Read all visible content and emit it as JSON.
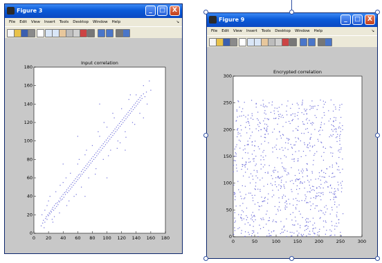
{
  "windows": [
    {
      "id": "w1",
      "title": "Figure 3",
      "menu": [
        "File",
        "Edit",
        "View",
        "Insert",
        "Tools",
        "Desktop",
        "Window",
        "Help"
      ],
      "title_buttons": {
        "minimize": "_",
        "maximize": "□",
        "close": "X"
      },
      "toolbar_icons": [
        "new-file-icon",
        "open-folder-icon",
        "save-icon",
        "print-icon",
        "arrow-pointer-icon",
        "zoom-in-icon",
        "zoom-out-icon",
        "pan-hand-icon",
        "rotate-3d-icon",
        "data-cursor-icon",
        "brush-icon",
        "link-plot-icon",
        "colorbar-icon",
        "legend-icon",
        "hide-plot-tools-icon",
        "show-plot-tools-icon"
      ]
    },
    {
      "id": "w2",
      "title": "Figure 9",
      "menu": [
        "File",
        "Edit",
        "View",
        "Insert",
        "Tools",
        "Desktop",
        "Window",
        "Help"
      ],
      "title_buttons": {
        "minimize": "_",
        "maximize": "□",
        "close": "X"
      },
      "toolbar_icons": [
        "new-file-icon",
        "open-folder-icon",
        "save-icon",
        "print-icon",
        "arrow-pointer-icon",
        "zoom-in-icon",
        "zoom-out-icon",
        "pan-hand-icon",
        "rotate-3d-icon",
        "data-cursor-icon",
        "brush-icon",
        "link-plot-icon",
        "colorbar-icon",
        "legend-icon",
        "hide-plot-tools-icon",
        "show-plot-tools-icon"
      ]
    }
  ],
  "colors": {
    "marker": "#6a6ad8",
    "axes_bg": "#ffffff",
    "figure_bg": "#c8c8c8",
    "titlebar": "#0a5ad8"
  },
  "chart_data": [
    {
      "type": "scatter",
      "title": "Input correlation",
      "xlabel": "",
      "ylabel": "",
      "xlim": [
        0,
        180
      ],
      "ylim": [
        0,
        180
      ],
      "xticks": [
        0,
        20,
        40,
        60,
        80,
        100,
        120,
        140,
        160,
        180
      ],
      "yticks": [
        0,
        20,
        40,
        60,
        80,
        100,
        120,
        140,
        160,
        180
      ],
      "grid": false,
      "points": [
        [
          10,
          8
        ],
        [
          12,
          11
        ],
        [
          13,
          14
        ],
        [
          15,
          12
        ],
        [
          16,
          16
        ],
        [
          17,
          18
        ],
        [
          18,
          15
        ],
        [
          19,
          20
        ],
        [
          20,
          19
        ],
        [
          21,
          22
        ],
        [
          22,
          21
        ],
        [
          23,
          24
        ],
        [
          24,
          23
        ],
        [
          25,
          26
        ],
        [
          26,
          28
        ],
        [
          27,
          25
        ],
        [
          28,
          30
        ],
        [
          29,
          27
        ],
        [
          30,
          32
        ],
        [
          31,
          29
        ],
        [
          32,
          33
        ],
        [
          33,
          31
        ],
        [
          34,
          35
        ],
        [
          35,
          34
        ],
        [
          36,
          38
        ],
        [
          37,
          36
        ],
        [
          38,
          40
        ],
        [
          39,
          37
        ],
        [
          40,
          42
        ],
        [
          41,
          39
        ],
        [
          42,
          44
        ],
        [
          43,
          42
        ],
        [
          44,
          45
        ],
        [
          45,
          47
        ],
        [
          46,
          44
        ],
        [
          47,
          49
        ],
        [
          48,
          46
        ],
        [
          49,
          51
        ],
        [
          50,
          48
        ],
        [
          51,
          53
        ],
        [
          52,
          50
        ],
        [
          53,
          55
        ],
        [
          54,
          52
        ],
        [
          55,
          57
        ],
        [
          56,
          54
        ],
        [
          57,
          59
        ],
        [
          58,
          56
        ],
        [
          59,
          61
        ],
        [
          60,
          58
        ],
        [
          61,
          63
        ],
        [
          62,
          60
        ],
        [
          63,
          64
        ],
        [
          64,
          62
        ],
        [
          65,
          67
        ],
        [
          66,
          64
        ],
        [
          67,
          69
        ],
        [
          68,
          66
        ],
        [
          69,
          71
        ],
        [
          70,
          68
        ],
        [
          71,
          73
        ],
        [
          72,
          70
        ],
        [
          73,
          75
        ],
        [
          74,
          72
        ],
        [
          75,
          77
        ],
        [
          76,
          74
        ],
        [
          77,
          79
        ],
        [
          78,
          76
        ],
        [
          79,
          81
        ],
        [
          80,
          78
        ],
        [
          81,
          83
        ],
        [
          82,
          80
        ],
        [
          83,
          85
        ],
        [
          84,
          82
        ],
        [
          85,
          87
        ],
        [
          86,
          84
        ],
        [
          87,
          89
        ],
        [
          88,
          86
        ],
        [
          89,
          91
        ],
        [
          90,
          88
        ],
        [
          91,
          93
        ],
        [
          92,
          90
        ],
        [
          93,
          95
        ],
        [
          94,
          92
        ],
        [
          95,
          97
        ],
        [
          96,
          94
        ],
        [
          97,
          99
        ],
        [
          98,
          96
        ],
        [
          99,
          101
        ],
        [
          100,
          98
        ],
        [
          101,
          103
        ],
        [
          102,
          100
        ],
        [
          103,
          105
        ],
        [
          104,
          102
        ],
        [
          105,
          107
        ],
        [
          106,
          104
        ],
        [
          107,
          109
        ],
        [
          108,
          106
        ],
        [
          109,
          111
        ],
        [
          110,
          108
        ],
        [
          111,
          113
        ],
        [
          112,
          110
        ],
        [
          113,
          115
        ],
        [
          114,
          112
        ],
        [
          115,
          117
        ],
        [
          116,
          114
        ],
        [
          117,
          119
        ],
        [
          118,
          116
        ],
        [
          119,
          121
        ],
        [
          120,
          118
        ],
        [
          121,
          123
        ],
        [
          122,
          120
        ],
        [
          123,
          125
        ],
        [
          124,
          122
        ],
        [
          125,
          127
        ],
        [
          126,
          124
        ],
        [
          127,
          129
        ],
        [
          128,
          126
        ],
        [
          129,
          131
        ],
        [
          130,
          128
        ],
        [
          131,
          133
        ],
        [
          132,
          130
        ],
        [
          133,
          135
        ],
        [
          134,
          132
        ],
        [
          135,
          137
        ],
        [
          136,
          134
        ],
        [
          137,
          139
        ],
        [
          138,
          136
        ],
        [
          139,
          141
        ],
        [
          140,
          138
        ],
        [
          141,
          143
        ],
        [
          142,
          140
        ],
        [
          143,
          145
        ],
        [
          144,
          142
        ],
        [
          145,
          147
        ],
        [
          146,
          144
        ],
        [
          147,
          149
        ],
        [
          148,
          146
        ],
        [
          150,
          151
        ],
        [
          152,
          148
        ],
        [
          154,
          153
        ],
        [
          15,
          25
        ],
        [
          20,
          35
        ],
        [
          25,
          15
        ],
        [
          30,
          45
        ],
        [
          35,
          22
        ],
        [
          40,
          55
        ],
        [
          45,
          30
        ],
        [
          50,
          65
        ],
        [
          55,
          40
        ],
        [
          60,
          75
        ],
        [
          65,
          50
        ],
        [
          70,
          85
        ],
        [
          75,
          60
        ],
        [
          80,
          95
        ],
        [
          85,
          70
        ],
        [
          90,
          105
        ],
        [
          95,
          80
        ],
        [
          100,
          115
        ],
        [
          105,
          90
        ],
        [
          110,
          125
        ],
        [
          115,
          100
        ],
        [
          120,
          135
        ],
        [
          125,
          110
        ],
        [
          130,
          145
        ],
        [
          135,
          120
        ],
        [
          140,
          150
        ],
        [
          145,
          130
        ],
        [
          118,
          98
        ],
        [
          88,
          110
        ],
        [
          62,
          80
        ],
        [
          48,
          35
        ],
        [
          36,
          52
        ],
        [
          28,
          18
        ],
        [
          22,
          40
        ],
        [
          14,
          6
        ],
        [
          11,
          20
        ],
        [
          18,
          30
        ],
        [
          26,
          12
        ],
        [
          44,
          60
        ],
        [
          58,
          42
        ],
        [
          72,
          90
        ],
        [
          84,
          64
        ],
        [
          96,
          120
        ],
        [
          102,
          84
        ],
        [
          108,
          130
        ],
        [
          114,
          92
        ],
        [
          126,
          104
        ],
        [
          132,
          150
        ],
        [
          138,
          118
        ],
        [
          150,
          160
        ],
        [
          160,
          155
        ],
        [
          155,
          140
        ],
        [
          158,
          165
        ],
        [
          70,
          40
        ],
        [
          40,
          75
        ],
        [
          100,
          60
        ],
        [
          60,
          105
        ],
        [
          125,
          90
        ],
        [
          90,
          140
        ],
        [
          150,
          125
        ]
      ]
    },
    {
      "type": "scatter",
      "title": "Encrypted correlation",
      "xlabel": "",
      "ylabel": "",
      "xlim": [
        0,
        300
      ],
      "ylim": [
        0,
        300
      ],
      "xticks": [
        0,
        50,
        100,
        150,
        200,
        250,
        300
      ],
      "yticks": [
        0,
        50,
        100,
        150,
        200,
        250,
        300
      ],
      "grid": false,
      "points_generated": {
        "count": 900,
        "x_range": [
          0,
          256
        ],
        "y_range": [
          0,
          256
        ]
      }
    }
  ]
}
